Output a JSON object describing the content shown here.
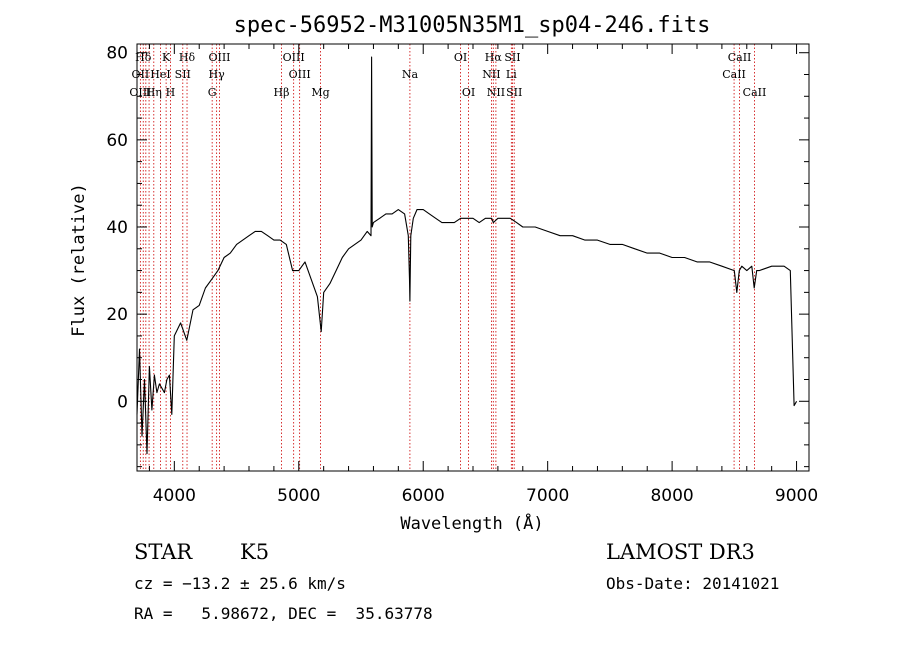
{
  "chart_data": {
    "type": "line",
    "title": "spec-56952-M31005N35M1_sp04-246.fits",
    "xlabel": "Wavelength (Å)",
    "ylabel": "Flux (relative)",
    "xlim": [
      3700,
      9100
    ],
    "ylim": [
      -16,
      82
    ],
    "x_ticks": [
      4000,
      5000,
      6000,
      7000,
      8000,
      9000
    ],
    "y_ticks": [
      0,
      20,
      40,
      60,
      80
    ],
    "x_tick_labels": [
      "4000",
      "5000",
      "6000",
      "7000",
      "8000",
      "9000"
    ],
    "y_tick_labels": [
      "0",
      "20",
      "40",
      "60",
      "80"
    ],
    "grid": false,
    "series": [
      {
        "name": "flux",
        "color": "#000000",
        "x": [
          3700,
          3720,
          3740,
          3760,
          3780,
          3800,
          3820,
          3840,
          3860,
          3880,
          3900,
          3920,
          3940,
          3960,
          3980,
          4000,
          4050,
          4100,
          4150,
          4200,
          4250,
          4300,
          4350,
          4400,
          4450,
          4500,
          4550,
          4600,
          4650,
          4700,
          4750,
          4800,
          4850,
          4900,
          4950,
          5000,
          5050,
          5100,
          5150,
          5180,
          5200,
          5250,
          5300,
          5350,
          5400,
          5450,
          5500,
          5550,
          5580,
          5585,
          5590,
          5600,
          5650,
          5700,
          5750,
          5800,
          5850,
          5880,
          5890,
          5893,
          5896,
          5900,
          5920,
          5950,
          6000,
          6050,
          6100,
          6150,
          6200,
          6250,
          6300,
          6350,
          6400,
          6450,
          6500,
          6550,
          6563,
          6600,
          6650,
          6700,
          6750,
          6800,
          6900,
          7000,
          7100,
          7200,
          7300,
          7400,
          7500,
          7600,
          7700,
          7800,
          7900,
          8000,
          8100,
          8200,
          8300,
          8400,
          8500,
          8520,
          8540,
          8560,
          8600,
          8640,
          8660,
          8680,
          8700,
          8800,
          8900,
          8950,
          8980,
          9000
        ],
        "values": [
          -3,
          12,
          -8,
          5,
          -12,
          8,
          -2,
          6,
          2,
          4,
          3,
          2,
          5,
          6,
          -3,
          15,
          18,
          14,
          21,
          22,
          26,
          28,
          30,
          33,
          34,
          36,
          37,
          38,
          39,
          39,
          38,
          37,
          37,
          36,
          30,
          30,
          32,
          28,
          24,
          16,
          25,
          27,
          30,
          33,
          35,
          36,
          37,
          39,
          38,
          79,
          40,
          41,
          42,
          43,
          43,
          44,
          43,
          38,
          28,
          23,
          30,
          38,
          42,
          44,
          44,
          43,
          42,
          41,
          41,
          41,
          42,
          42,
          42,
          41,
          42,
          42,
          41,
          42,
          42,
          42,
          41,
          40,
          40,
          39,
          38,
          38,
          37,
          37,
          36,
          36,
          35,
          34,
          34,
          33,
          33,
          32,
          32,
          31,
          30,
          25,
          30,
          31,
          30,
          31,
          26,
          30,
          30,
          31,
          31,
          30,
          -1,
          0
        ]
      }
    ],
    "line_annotations": [
      {
        "label": "Hδ",
        "wavelength": 3750,
        "row": 1
      },
      {
        "label": "K",
        "wavelength": 3934,
        "row": 1
      },
      {
        "label": "Hδ",
        "wavelength": 4102,
        "row": 1
      },
      {
        "label": "OIII",
        "wavelength": 4363,
        "row": 1
      },
      {
        "label": "OIII",
        "wavelength": 4959,
        "row": 1
      },
      {
        "label": "OI",
        "wavelength": 6300,
        "row": 1
      },
      {
        "label": "Hα",
        "wavelength": 6563,
        "row": 1
      },
      {
        "label": "SII",
        "wavelength": 6717,
        "row": 1
      },
      {
        "label": "CaII",
        "wavelength": 8542,
        "row": 1
      },
      {
        "label": "OII",
        "wavelength": 3727,
        "row": 2
      },
      {
        "label": "HeI",
        "wavelength": 3889,
        "row": 2
      },
      {
        "label": "SII",
        "wavelength": 4068,
        "row": 2
      },
      {
        "label": "Hγ",
        "wavelength": 4340,
        "row": 2
      },
      {
        "label": "OIII",
        "wavelength": 5007,
        "row": 2
      },
      {
        "label": "Na",
        "wavelength": 5893,
        "row": 2
      },
      {
        "label": "NII",
        "wavelength": 6548,
        "row": 2
      },
      {
        "label": "Li",
        "wavelength": 6708,
        "row": 2
      },
      {
        "label": "CaII",
        "wavelength": 8498,
        "row": 2
      },
      {
        "label": "OIII",
        "wavelength": 3727,
        "row": 3
      },
      {
        "label": "Hη",
        "wavelength": 3835,
        "row": 3
      },
      {
        "label": "H",
        "wavelength": 3969,
        "row": 3
      },
      {
        "label": "G",
        "wavelength": 4304,
        "row": 3
      },
      {
        "label": "Hβ",
        "wavelength": 4861,
        "row": 3
      },
      {
        "label": "Mg",
        "wavelength": 5175,
        "row": 3
      },
      {
        "label": "OI",
        "wavelength": 6364,
        "row": 3
      },
      {
        "label": "NII",
        "wavelength": 6584,
        "row": 3
      },
      {
        "label": "SII",
        "wavelength": 6731,
        "row": 3
      },
      {
        "label": "CaII",
        "wavelength": 8662,
        "row": 3
      }
    ],
    "line_markers": [
      3727,
      3750,
      3771,
      3797,
      3835,
      3889,
      3934,
      3969,
      4068,
      4102,
      4304,
      4340,
      4363,
      4861,
      4959,
      5007,
      5175,
      5893,
      6300,
      6364,
      6548,
      6563,
      6584,
      6708,
      6717,
      6731,
      8498,
      8542,
      8662
    ],
    "marker_color": "#cc0000",
    "axis_color": "#000000"
  },
  "info": {
    "object_type": "STAR",
    "subclass": "K5",
    "survey": "LAMOST DR3",
    "cz": "cz = −13.2 ± 25.6 km/s",
    "obs_date": "Obs-Date: 20141021",
    "coords": "RA =   5.98672, DEC =  35.63778"
  }
}
